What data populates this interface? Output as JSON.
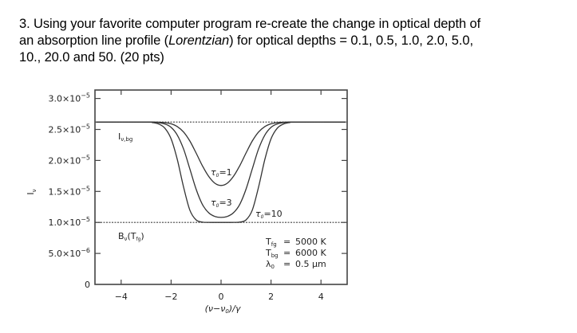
{
  "question": {
    "line1": "3. Using your favorite computer program re-create the change in optical depth of",
    "line2_pre": "an absorption line profile (",
    "line2_italic": "Lorentzian",
    "line2_post": ") for optical depths = 0.1, 0.5, 1.0, 2.0, 5.0,",
    "line3": "10., 20.0 and 50. (20 pts)"
  },
  "chart_data": {
    "type": "line",
    "title": "",
    "xlabel": "(ν−ν₀)/γ",
    "ylabel": "Iν",
    "xlim": [
      -5.3,
      5.0
    ],
    "ylim": [
      0,
      3.23e-05
    ],
    "x_ticks": [
      -4,
      -2,
      0,
      2,
      4
    ],
    "x_tick_labels": [
      "−4",
      "−2",
      "0",
      "2",
      "4"
    ],
    "y_ticks": [
      0,
      5e-06,
      1e-05,
      1.5e-05,
      2e-05,
      2.5e-05,
      3e-05
    ],
    "y_tick_labels": [
      {
        "mant": "0",
        "exp": ""
      },
      {
        "mant": "5.0×10",
        "exp": "−6"
      },
      {
        "mant": "1.0×10",
        "exp": "−5"
      },
      {
        "mant": "1.5×10",
        "exp": "−5"
      },
      {
        "mant": "2.0×10",
        "exp": "−5"
      },
      {
        "mant": "2.5×10",
        "exp": "−5"
      },
      {
        "mant": "3.0×10",
        "exp": "−5"
      }
    ],
    "grid": false,
    "reference_lines": [
      {
        "name": "I_nu_bg",
        "label_main": "I",
        "label_sub": "ν,bg",
        "y": 2.62e-05,
        "style": "dotted"
      },
      {
        "name": "B_nu_Tfg",
        "label_main": "B",
        "label_sub": "ν",
        "label_tail": "(T",
        "label_tail_sub": "fg",
        "label_end": ")",
        "y": 1e-05,
        "style": "dotted"
      }
    ],
    "x": [
      -5,
      -3,
      -2.75,
      -2.5,
      -2.25,
      -2,
      -1.75,
      -1.5,
      -1.25,
      -1,
      -0.75,
      -0.5,
      -0.25,
      0,
      0.25,
      0.5,
      0.75,
      1,
      1.25,
      1.5,
      1.75,
      2,
      2.25,
      2.5,
      2.75,
      3,
      5
    ],
    "series": [
      {
        "name": "τ₀=1",
        "tau0": 1,
        "label": "τ",
        "label_sub": "0",
        "label_tail": "=1",
        "values": [
          2.62e-05,
          2.62e-05,
          2.619e-05,
          2.617e-05,
          2.61e-05,
          2.591e-05,
          2.546e-05,
          2.458e-05,
          2.313e-05,
          2.121e-05,
          1.917e-05,
          1.744e-05,
          1.633e-05,
          1.596e-05,
          1.633e-05,
          1.744e-05,
          1.917e-05,
          2.121e-05,
          2.313e-05,
          2.458e-05,
          2.546e-05,
          2.591e-05,
          2.61e-05,
          2.617e-05,
          2.619e-05,
          2.62e-05,
          2.62e-05
        ]
      },
      {
        "name": "τ₀=3",
        "tau0": 3,
        "label": "τ",
        "label_sub": "0",
        "label_tail": "=3",
        "values": [
          2.62e-05,
          2.62e-05,
          2.617e-05,
          2.61e-05,
          2.589e-05,
          2.534e-05,
          2.408e-05,
          2.182e-05,
          1.863e-05,
          1.537e-05,
          1.293e-05,
          1.157e-05,
          1.097e-05,
          1.081e-05,
          1.097e-05,
          1.157e-05,
          1.293e-05,
          1.537e-05,
          1.863e-05,
          2.182e-05,
          2.408e-05,
          2.534e-05,
          2.589e-05,
          2.61e-05,
          2.617e-05,
          2.62e-05,
          2.62e-05
        ]
      },
      {
        "name": "τ₀=10",
        "tau0": 10,
        "label": "τ",
        "label_sub": "0",
        "label_tail": "=10",
        "values": [
          2.62e-05,
          2.62e-05,
          2.612e-05,
          2.589e-05,
          2.521e-05,
          2.349e-05,
          2.014e-05,
          1.567e-05,
          1.198e-05,
          1.041e-05,
          1.005e-05,
          1.001e-05,
          1e-05,
          1e-05,
          1e-05,
          1.001e-05,
          1.005e-05,
          1.041e-05,
          1.198e-05,
          1.567e-05,
          2.014e-05,
          2.349e-05,
          2.521e-05,
          2.589e-05,
          2.612e-05,
          2.62e-05,
          2.62e-05
        ]
      }
    ],
    "annotations": [
      {
        "main": "T",
        "sub": "fg",
        "eq": "=",
        "value": "5000 K"
      },
      {
        "main": "T",
        "sub": "bg",
        "eq": "=",
        "value": "6000 K"
      },
      {
        "main": "λ",
        "sub": "0",
        "eq": "=",
        "value": "0.5 μm"
      }
    ],
    "legend": "none"
  },
  "colors": {
    "axis": "#444444",
    "curve": "#333333",
    "text": "#222222"
  }
}
